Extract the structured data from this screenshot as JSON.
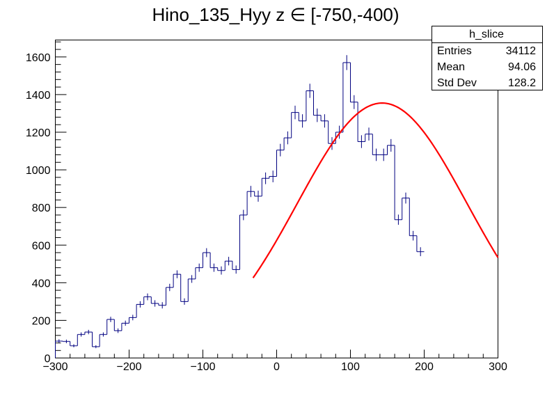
{
  "chart_data": {
    "type": "histogram",
    "title": "Hino_135_Hyy z  ∈ [-750,-400)",
    "xlabel": "",
    "ylabel": "",
    "xlim": [
      -300,
      300
    ],
    "ylim": [
      0,
      1690
    ],
    "x_ticks": [
      -300,
      -200,
      -100,
      0,
      100,
      200,
      300
    ],
    "y_ticks": [
      0,
      200,
      400,
      600,
      800,
      1000,
      1200,
      1400,
      1600
    ],
    "bin_edges_start": -300,
    "bin_width": 10,
    "counts": [
      90,
      88,
      65,
      125,
      138,
      60,
      125,
      205,
      145,
      185,
      215,
      285,
      325,
      290,
      280,
      375,
      445,
      300,
      420,
      480,
      560,
      480,
      465,
      515,
      470,
      760,
      885,
      860,
      955,
      965,
      1105,
      1170,
      1305,
      1260,
      1420,
      1290,
      1260,
      1140,
      1200,
      1570,
      1360,
      1150,
      1190,
      1080,
      1080,
      1130,
      735,
      850,
      650,
      565
    ],
    "colors": {
      "histogram": "#000080",
      "fit": "#ff0000"
    },
    "fit": {
      "type": "gaussian",
      "amplitude": 1355,
      "mean": 143,
      "sigma": 115,
      "x_range": [
        -32,
        300
      ]
    },
    "stats_box": {
      "title": "h_slice",
      "rows": [
        {
          "label": "Entries",
          "value": "34112"
        },
        {
          "label": "Mean",
          "value": "94.06"
        },
        {
          "label": "Std Dev",
          "value": "128.2"
        }
      ]
    }
  }
}
